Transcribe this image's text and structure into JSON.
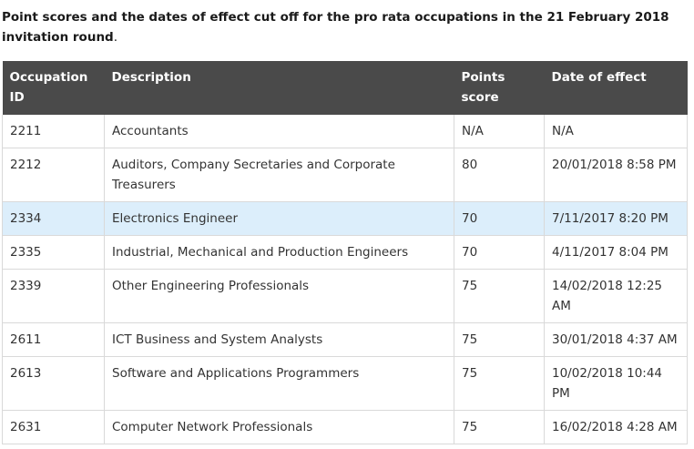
{
  "caption": {
    "text": "Point scores and the dates of effect cut off for the pro rata occupations in the 21 February 2018 invitation round",
    "end": "."
  },
  "table": {
    "headers": {
      "occupation_id": "Occupation ID",
      "description": "Description",
      "points_score": "Points score",
      "date_of_effect": "Date of effect"
    },
    "rows": [
      {
        "id": "2211",
        "description": "Accountants",
        "points": "N/A",
        "date": "N/A"
      },
      {
        "id": "2212",
        "description": "Auditors, Company Secretaries and Corporate Treasurers",
        "points": "80",
        "date": "20/01/2018 8:58 PM"
      },
      {
        "id": "2334",
        "description": "Electronics Engineer",
        "points": "70",
        "date": "7/11/2017 8:20 PM"
      },
      {
        "id": "2335",
        "description": "Industrial, Mechanical and Production Engineers",
        "points": "70",
        "date": "4/11/2017  8:04 PM"
      },
      {
        "id": "2339",
        "description": "Other Engineering Professionals",
        "points": "75",
        "date": "14/02/2018  12:25 AM"
      },
      {
        "id": "2611",
        "description": "ICT Business and System Analysts",
        "points": "75",
        "date": "30/01/2018  4:37 AM"
      },
      {
        "id": "2613",
        "description": "Software and Applications Programmers",
        "points": "75",
        "date": "10/02/2018  10:44 PM"
      },
      {
        "id": "2631",
        "description": "Computer Network Professionals",
        "points": "75",
        "date": "16/02/2018 4:28 AM"
      }
    ]
  },
  "colors": {
    "header_bg": "#4a4a4a",
    "highlight_row_bg": "#dceefb",
    "border": "#d9d9d9"
  }
}
